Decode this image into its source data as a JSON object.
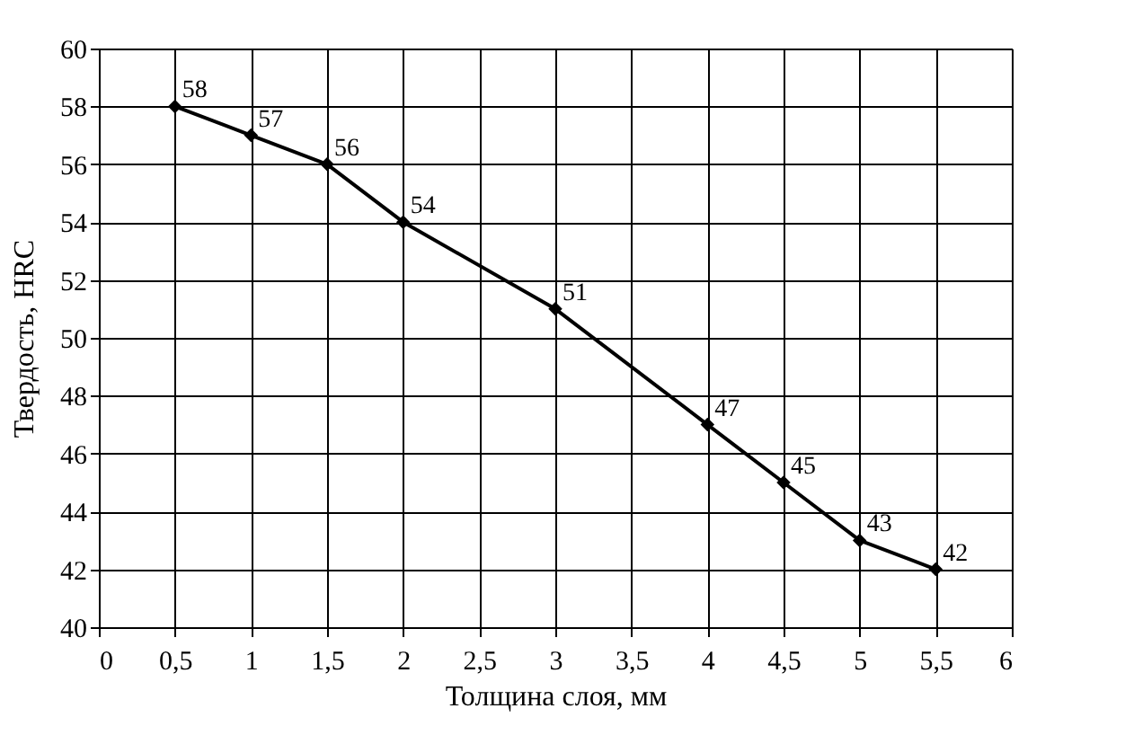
{
  "chart_data": {
    "type": "line",
    "xlabel": "Толщина слоя, мм",
    "ylabel": "Твердость, HRC",
    "x": [
      0.5,
      1,
      1.5,
      2,
      3,
      4,
      4.5,
      5,
      5.5
    ],
    "series": [
      {
        "color": "#000000",
        "values": [
          58,
          57,
          56,
          54,
          51,
          47,
          45,
          43,
          42
        ]
      }
    ],
    "xlim": [
      0,
      6
    ],
    "xticks": [
      0,
      {
        "value": 0.5,
        "label": "0,5"
      },
      1,
      {
        "value": 1.5,
        "label": "1,5"
      },
      2,
      {
        "value": 2.5,
        "label": "2,5"
      },
      3,
      {
        "value": 3.5,
        "label": "3,5"
      },
      4,
      {
        "value": 4.5,
        "label": "4,5"
      },
      5,
      {
        "value": 5.5,
        "label": "5,5"
      },
      6
    ],
    "ylim": [
      40,
      60
    ],
    "yticks": [
      40,
      42,
      44,
      46,
      48,
      50,
      52,
      54,
      56,
      58,
      60
    ],
    "grid": true,
    "marker": "diamond",
    "line_style": "solid",
    "data_labels": true
  }
}
